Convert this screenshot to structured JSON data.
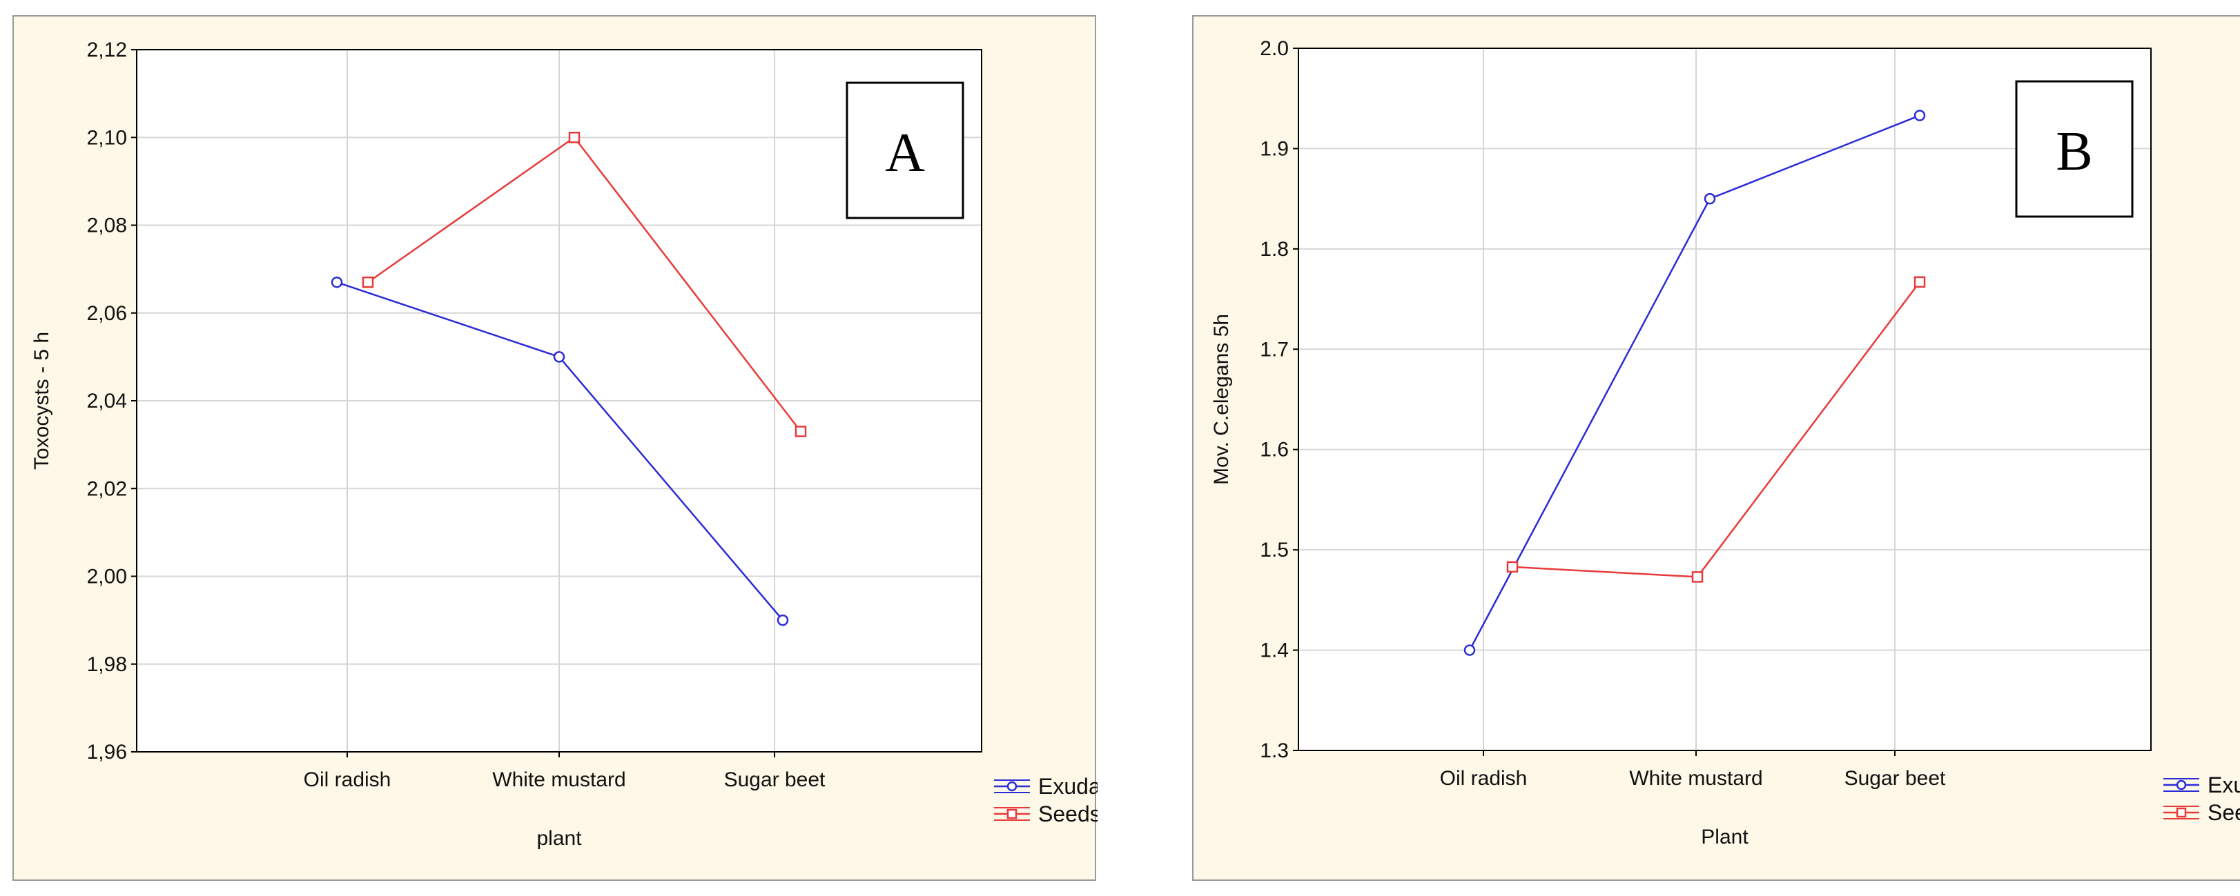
{
  "chart_data": [
    {
      "type": "line",
      "panel_label": "A",
      "title": "",
      "xlabel": "plant",
      "ylabel": "Toxocysts - 5 h",
      "categories": [
        "Oil radish",
        "White mustard",
        "Sugar beet"
      ],
      "ylim": [
        1.96,
        2.12
      ],
      "yticks": [
        "1,96",
        "1,98",
        "2,00",
        "2,02",
        "2,04",
        "2,06",
        "2,08",
        "2,10",
        "2,12"
      ],
      "grid": true,
      "legend_position": "bottom-right",
      "series": [
        {
          "name": "Exudates",
          "color": "#2b2bd8",
          "marker": "circle",
          "values": [
            2.067,
            2.05,
            1.99
          ]
        },
        {
          "name": "Seeds",
          "color": "#e83a3a",
          "marker": "square",
          "values": [
            2.067,
            2.1,
            2.033
          ]
        }
      ]
    },
    {
      "type": "line",
      "panel_label": "B",
      "title": "",
      "xlabel": "Plant",
      "ylabel": "Mov. C.elegans 5h",
      "categories": [
        "Oil radish",
        "White mustard",
        "Sugar beet"
      ],
      "ylim": [
        1.3,
        2.0
      ],
      "yticks": [
        "1.3",
        "1.4",
        "1.5",
        "1.6",
        "1.7",
        "1.8",
        "1.9",
        "2.0"
      ],
      "grid": true,
      "legend_position": "bottom-right",
      "series": [
        {
          "name": "Exudates",
          "color": "#2b2bd8",
          "marker": "circle",
          "values": [
            1.4,
            1.85,
            1.933
          ]
        },
        {
          "name": "Seeds",
          "color": "#e83a3a",
          "marker": "square",
          "values": [
            1.483,
            1.473,
            1.767
          ]
        }
      ]
    }
  ]
}
